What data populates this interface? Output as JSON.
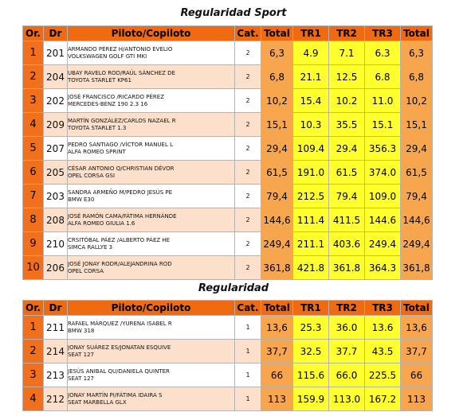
{
  "sections": [
    {
      "title": "Regularidad Sport",
      "headers": [
        "Or.",
        "Dr",
        "Piloto/Copiloto",
        "Cat.",
        "Total",
        "TR1",
        "TR2",
        "TR3",
        "Total"
      ],
      "rows": [
        {
          "or": "1",
          "dr": "201",
          "line1": "ARMANDO PÉREZ H/ANTONIO EVELIO",
          "line2": "VOLKSWAGEN GOLF GTI MKI",
          "cat": "2",
          "total": "6,3",
          "tr1": "4.9",
          "tr2": "7.1",
          "tr3": "6.3",
          "total2": "6,3"
        },
        {
          "or": "2",
          "dr": "204",
          "line1": "UBAY RAVELO ROD/RAÚL SÁNCHEZ DE",
          "line2": "TOYOTA STARLET KP61",
          "cat": "2",
          "total": "6,8",
          "tr1": "21.1",
          "tr2": "12.5",
          "tr3": "6.8",
          "total2": "6,8"
        },
        {
          "or": "3",
          "dr": "202",
          "line1": "JOSÉ FRANCISCO /RICARDO PÉREZ",
          "line2": "MERCEDES-BENZ 190 2.3 16",
          "cat": "2",
          "total": "10,2",
          "tr1": "15.4",
          "tr2": "10.2",
          "tr3": "11.0",
          "total2": "10,2"
        },
        {
          "or": "4",
          "dr": "209",
          "line1": "MARTÍN GONZÁLEZ/CARLOS NAZAEL R",
          "line2": "TOYOTA STARLET 1.3",
          "cat": "2",
          "total": "15,1",
          "tr1": "10.3",
          "tr2": "35.5",
          "tr3": "15.1",
          "total2": "15,1"
        },
        {
          "or": "5",
          "dr": "207",
          "line1": "PEDRO SANTIAGO /VÍCTOR MANUEL L",
          "line2": "ALFA ROMEO SPRINT",
          "cat": "2",
          "total": "29,4",
          "tr1": "109.4",
          "tr2": "29.4",
          "tr3": "356.3",
          "total2": "29,4"
        },
        {
          "or": "6",
          "dr": "205",
          "line1": "CÉSAR ANTONIO Q/CHRISTIAN DÉVOR",
          "line2": "OPEL CORSA GSI",
          "cat": "2",
          "total": "61,5",
          "tr1": "191.0",
          "tr2": "61.5",
          "tr3": "374.0",
          "total2": "61,5"
        },
        {
          "or": "7",
          "dr": "203",
          "line1": "SANDRA ARMEÑO M/PEDRO JESÚS PE",
          "line2": "BMW E30",
          "cat": "2",
          "total": "79,4",
          "tr1": "212.5",
          "tr2": "79.4",
          "tr3": "109.0",
          "total2": "79,4"
        },
        {
          "or": "8",
          "dr": "208",
          "line1": "JOSÉ RAMÓN CAMA/FÁTIMA HERNÁNDE",
          "line2": "ALFA ROMEO GIULIA 1.6",
          "cat": "2",
          "total": "144,6",
          "tr1": "111.4",
          "tr2": "411.5",
          "tr3": "144.6",
          "total2": "144,6"
        },
        {
          "or": "9",
          "dr": "210",
          "line1": "CRSITÓBAL PÁEZ /ALBERTO PÁEZ HE",
          "line2": "SIMCA RALLYE 3",
          "cat": "2",
          "total": "249,4",
          "tr1": "211.1",
          "tr2": "403.6",
          "tr3": "249.4",
          "total2": "249,4"
        },
        {
          "or": "10",
          "dr": "206",
          "line1": "JOSÉ JONAY RODR/ALEJANDRINA ROD",
          "line2": "OPEL CORSA",
          "cat": "2",
          "total": "361,8",
          "tr1": "421.8",
          "tr2": "361.8",
          "tr3": "364.3",
          "total2": "361,8"
        }
      ]
    },
    {
      "title": "Regularidad",
      "headers": [
        "Or.",
        "Dr",
        "Piloto/Copiloto",
        "Cat.",
        "Total",
        "TR1",
        "TR2",
        "TR3",
        "Total"
      ],
      "rows": [
        {
          "or": "1",
          "dr": "211",
          "line1": "RAFAEL MÁRQUEZ /YURENA ISABEL R",
          "line2": "BMW 318",
          "cat": "1",
          "total": "13,6",
          "tr1": "25.3",
          "tr2": "36.0",
          "tr3": "13.6",
          "total2": "13,6"
        },
        {
          "or": "2",
          "dr": "214",
          "line1": "JONAY SUÁREZ ES/JONATAN ESQUIVE",
          "line2": "SEAT 127",
          "cat": "1",
          "total": "37,7",
          "tr1": "32.5",
          "tr2": "37.7",
          "tr3": "43.5",
          "total2": "37,7"
        },
        {
          "or": "3",
          "dr": "213",
          "line1": "JESÚS ANIBAL QU/DANIELA QUINTER",
          "line2": "SEAT 127",
          "cat": "1",
          "total": "66",
          "tr1": "115.6",
          "tr2": "66.0",
          "tr3": "225.5",
          "total2": "66"
        },
        {
          "or": "4",
          "dr": "212",
          "line1": "JONAY MARTÍN PI/FÁTIMA IDAIRA S",
          "line2": "SEAT MARBELLA GLX",
          "cat": "1",
          "total": "113",
          "tr1": "159.9",
          "tr2": "113.0",
          "tr3": "167.2",
          "total2": "113"
        }
      ]
    }
  ]
}
